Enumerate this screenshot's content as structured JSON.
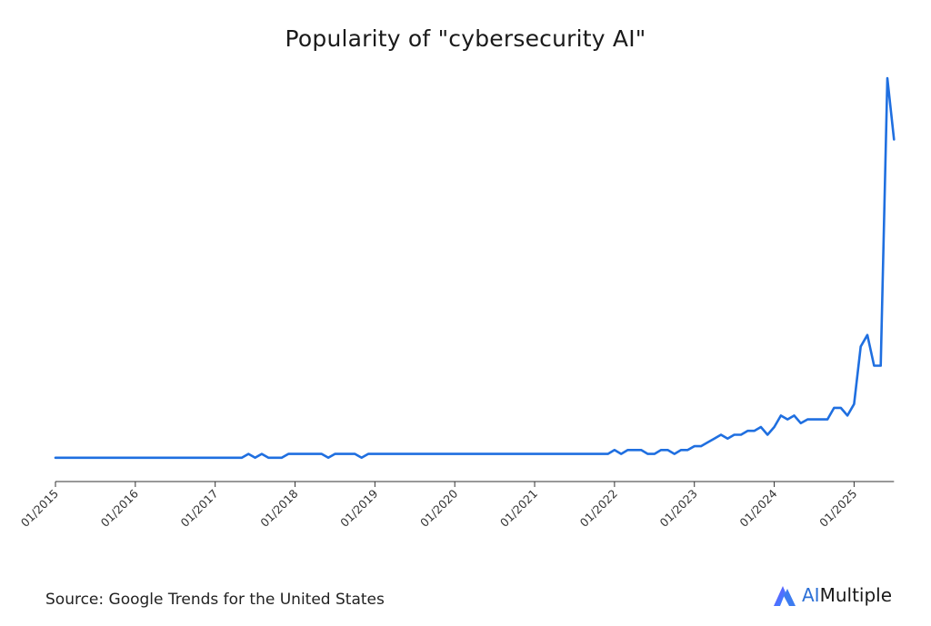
{
  "title": "Popularity of \"cybersecurity AI\"",
  "source": "Source: Google Trends for the United States",
  "brand": {
    "prefix": "AI",
    "rest": "Multiple",
    "logo_icon": "aimultiple-logo-icon"
  },
  "colors": {
    "line": "#1f6fe0",
    "axis": "#333333",
    "brand_accent": "#2b6fd6"
  },
  "chart_data": {
    "type": "line",
    "title": "Popularity of \"cybersecurity AI\"",
    "xlabel": "",
    "ylabel": "",
    "grid": false,
    "legend": "none",
    "x_tick_labels": [
      "01/2015",
      "01/2016",
      "01/2017",
      "01/2018",
      "01/2019",
      "01/2020",
      "01/2021",
      "01/2022",
      "01/2023",
      "01/2024",
      "01/2025"
    ],
    "ylim": [
      0,
      100
    ],
    "series": [
      {
        "name": "",
        "points": [
          [
            "2015-01",
            1
          ],
          [
            "2017-05",
            1
          ],
          [
            "2017-06",
            2
          ],
          [
            "2017-07",
            1
          ],
          [
            "2017-08",
            2
          ],
          [
            "2017-09",
            1
          ],
          [
            "2017-11",
            1
          ],
          [
            "2017-12",
            2
          ],
          [
            "2018-05",
            2
          ],
          [
            "2018-06",
            1
          ],
          [
            "2018-07",
            2
          ],
          [
            "2018-10",
            2
          ],
          [
            "2018-11",
            1
          ],
          [
            "2018-12",
            2
          ],
          [
            "2021-12",
            2
          ],
          [
            "2022-01",
            3
          ],
          [
            "2022-02",
            2
          ],
          [
            "2022-03",
            3
          ],
          [
            "2022-05",
            3
          ],
          [
            "2022-06",
            2
          ],
          [
            "2022-07",
            2
          ],
          [
            "2022-08",
            3
          ],
          [
            "2022-09",
            3
          ],
          [
            "2022-10",
            2
          ],
          [
            "2022-11",
            3
          ],
          [
            "2022-12",
            3
          ],
          [
            "2023-01",
            4
          ],
          [
            "2023-02",
            4
          ],
          [
            "2023-03",
            5
          ],
          [
            "2023-04",
            6
          ],
          [
            "2023-05",
            7
          ],
          [
            "2023-06",
            6
          ],
          [
            "2023-07",
            7
          ],
          [
            "2023-08",
            7
          ],
          [
            "2023-09",
            8
          ],
          [
            "2023-10",
            8
          ],
          [
            "2023-11",
            9
          ],
          [
            "2023-12",
            7
          ],
          [
            "2024-01",
            9
          ],
          [
            "2024-02",
            12
          ],
          [
            "2024-03",
            11
          ],
          [
            "2024-04",
            12
          ],
          [
            "2024-05",
            10
          ],
          [
            "2024-06",
            11
          ],
          [
            "2024-07",
            11
          ],
          [
            "2024-08",
            11
          ],
          [
            "2024-09",
            11
          ],
          [
            "2024-10",
            14
          ],
          [
            "2024-11",
            14
          ],
          [
            "2024-12",
            12
          ],
          [
            "2025-01",
            15
          ],
          [
            "2025-02",
            30
          ],
          [
            "2025-03",
            33
          ],
          [
            "2025-04",
            25
          ],
          [
            "2025-05",
            25
          ],
          [
            "2025-06",
            100
          ],
          [
            "2025-07",
            84
          ]
        ]
      }
    ]
  }
}
